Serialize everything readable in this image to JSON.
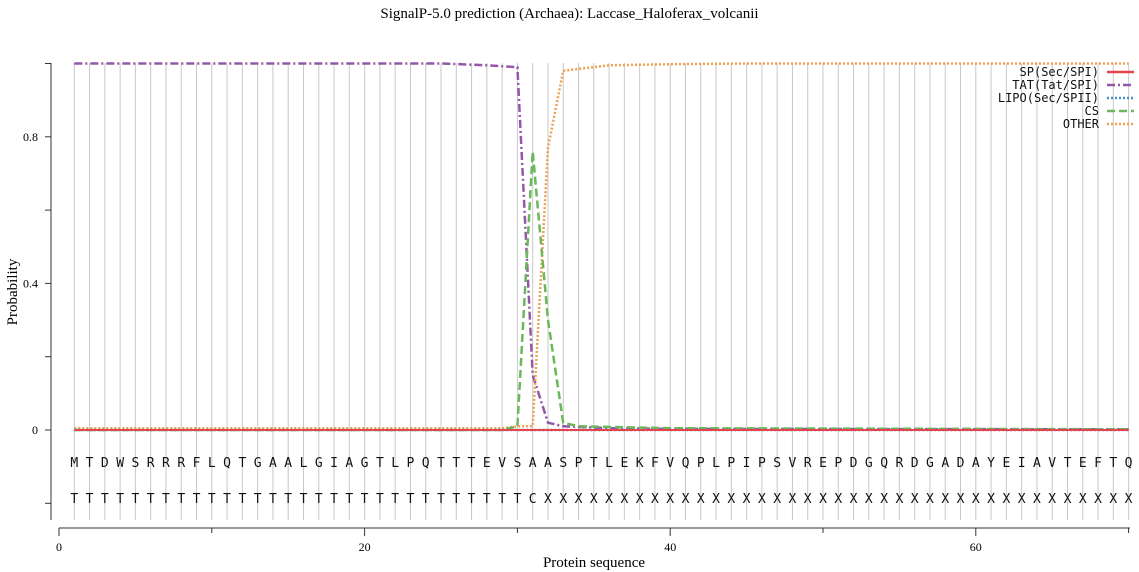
{
  "chart_data": {
    "type": "line",
    "title": "SignalP-5.0 prediction (Archaea):  Laccase_Haloferax_volcanii",
    "xlabel": "Protein sequence",
    "ylabel": "Probability",
    "xlim": [
      0,
      70
    ],
    "ylim": [
      -0.25,
      1.0
    ],
    "x_ticks": [
      0,
      20,
      40,
      60
    ],
    "x_minor_ticks": [
      10,
      30,
      50,
      70
    ],
    "y_ticks": [
      0,
      0.4,
      0.8
    ],
    "y_minor_ticks": [
      0.2,
      0.6,
      1.0,
      -0.2
    ],
    "grid": "vertical lines at each residue",
    "legend_position": "upper right",
    "sequence": [
      "M",
      "T",
      "D",
      "W",
      "S",
      "R",
      "R",
      "R",
      "F",
      "L",
      "Q",
      "T",
      "G",
      "A",
      "A",
      "L",
      "G",
      "I",
      "A",
      "G",
      "T",
      "L",
      "P",
      "Q",
      "T",
      "T",
      "T",
      "E",
      "V",
      "S",
      "A",
      "A",
      "S",
      "P",
      "T",
      "L",
      "E",
      "K",
      "F",
      "V",
      "Q",
      "P",
      "L",
      "P",
      "I",
      "P",
      "S",
      "V",
      "R",
      "E",
      "P",
      "D",
      "G",
      "Q",
      "R",
      "D",
      "G",
      "A",
      "D",
      "A",
      "Y",
      "E",
      "I",
      "A",
      "V",
      "T",
      "E",
      "F",
      "T",
      "Q"
    ],
    "annotation": [
      "T",
      "T",
      "T",
      "T",
      "T",
      "T",
      "T",
      "T",
      "T",
      "T",
      "T",
      "T",
      "T",
      "T",
      "T",
      "T",
      "T",
      "T",
      "T",
      "T",
      "T",
      "T",
      "T",
      "T",
      "T",
      "T",
      "T",
      "T",
      "T",
      "T",
      "C",
      "X",
      "X",
      "X",
      "X",
      "X",
      "X",
      "X",
      "X",
      "X",
      "X",
      "X",
      "X",
      "X",
      "X",
      "X",
      "X",
      "X",
      "X",
      "X",
      "X",
      "X",
      "X",
      "X",
      "X",
      "X",
      "X",
      "X",
      "X",
      "X",
      "X",
      "X",
      "X",
      "X",
      "X",
      "X",
      "X",
      "X",
      "X",
      "X"
    ],
    "series": [
      {
        "name": "SP(Sec/SPI)",
        "color": "#e8424a",
        "style": "solid",
        "points": [
          [
            1,
            0.0
          ],
          [
            70,
            0.0
          ]
        ]
      },
      {
        "name": "TAT(Tat/SPI)",
        "color": "#9457a8",
        "style": "dashdot",
        "points": [
          [
            1,
            1.0
          ],
          [
            25,
            1.0
          ],
          [
            28,
            0.995
          ],
          [
            30,
            0.99
          ],
          [
            31,
            0.15
          ],
          [
            32,
            0.02
          ],
          [
            33,
            0.01
          ],
          [
            36,
            0.005
          ],
          [
            40,
            0.003
          ],
          [
            70,
            0.002
          ]
        ]
      },
      {
        "name": "LIPO(Sec/SPII)",
        "color": "#4c8cbf",
        "style": "dotted",
        "points": [
          [
            1,
            0.0
          ],
          [
            70,
            0.0
          ]
        ]
      },
      {
        "name": "CS",
        "color": "#6ab85a",
        "style": "dashed",
        "points": [
          [
            1,
            0.0
          ],
          [
            29,
            0.0
          ],
          [
            30,
            0.01
          ],
          [
            31,
            0.76
          ],
          [
            32,
            0.3
          ],
          [
            33,
            0.02
          ],
          [
            34,
            0.01
          ],
          [
            40,
            0.005
          ],
          [
            70,
            0.002
          ]
        ]
      },
      {
        "name": "OTHER",
        "color": "#f0a050",
        "style": "dotted",
        "points": [
          [
            1,
            0.005
          ],
          [
            29,
            0.005
          ],
          [
            30,
            0.01
          ],
          [
            31,
            0.01
          ],
          [
            32,
            0.77
          ],
          [
            33,
            0.98
          ],
          [
            36,
            0.995
          ],
          [
            40,
            0.998
          ],
          [
            45,
            1.0
          ],
          [
            70,
            1.0
          ]
        ]
      }
    ]
  }
}
